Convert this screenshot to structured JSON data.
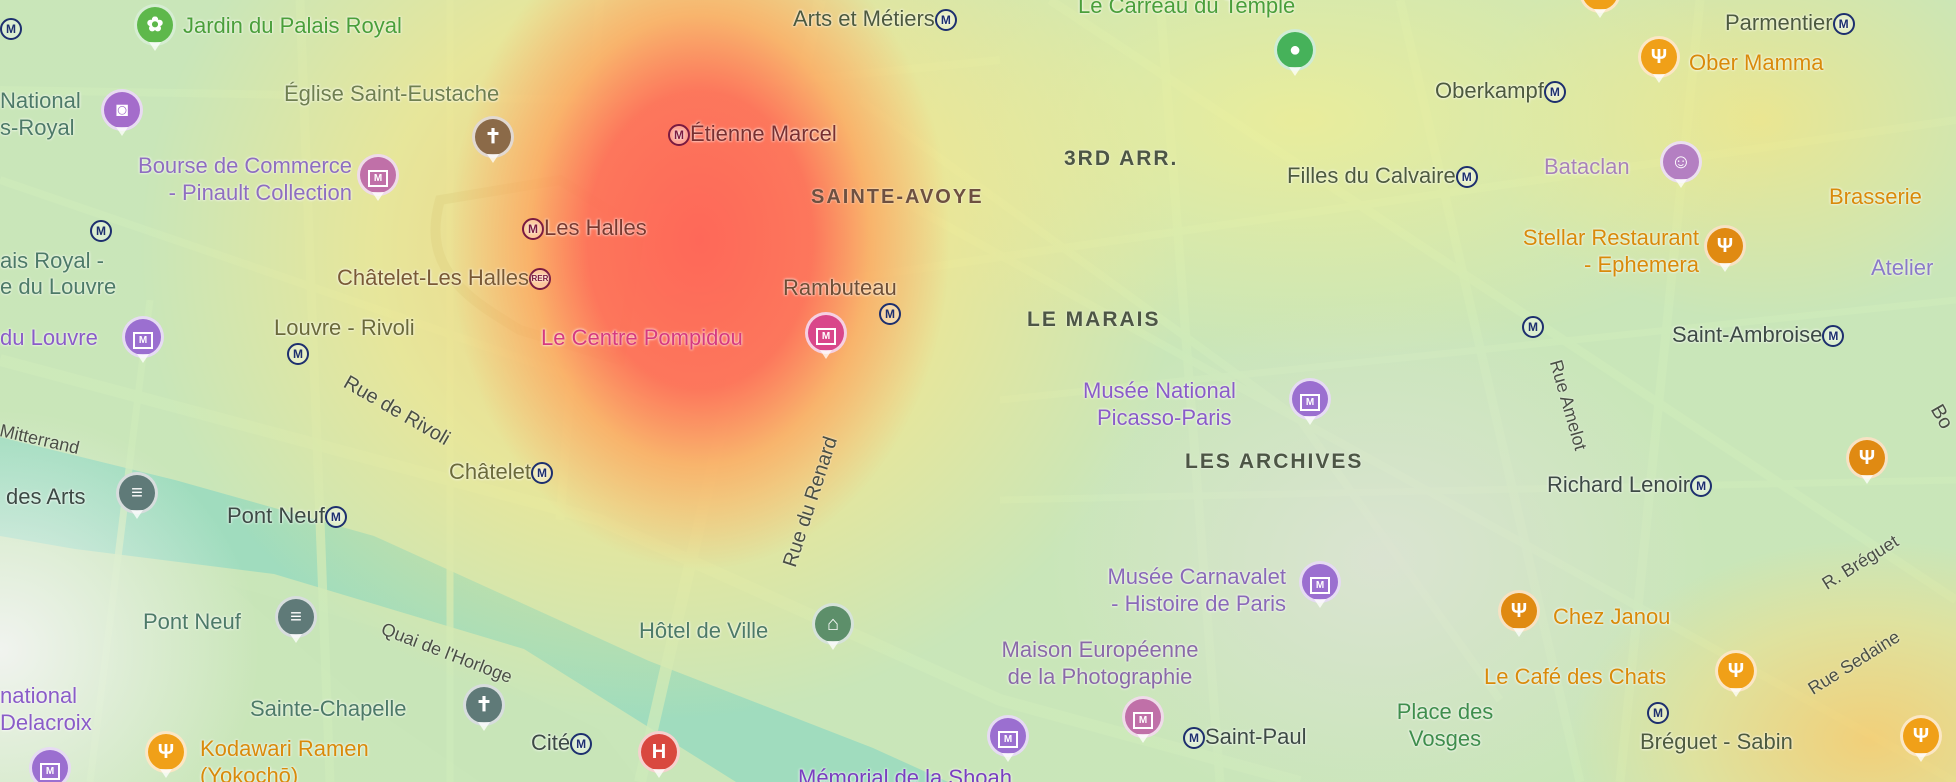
{
  "map": {
    "overlay": "heatmap",
    "heat_colors": {
      "high": "#ff5a55",
      "medium": "#ffc86e",
      "low": "#f5f08c",
      "lowest": "#afe496"
    },
    "water_color": "#8dd3ee",
    "districts": {
      "third": "3RD ARR.",
      "sainte_avoye": "SAINTE-AVOYE",
      "marais": "LE MARAIS",
      "archives": "LES ARCHIVES"
    },
    "stations": {
      "arts_metiers": "Arts et Métiers",
      "etienne_marcel": "Étienne Marcel",
      "les_halles": "Les Halles",
      "chatelet_les_halles": "Châtelet-Les Halles",
      "rambuteau": "Rambuteau",
      "louvre_rivoli": "Louvre - Rivoli",
      "palais_royal_1": "ais Royal -",
      "palais_royal_2": "e du Louvre",
      "chatelet": "Châtelet",
      "pont_neuf": "Pont Neuf",
      "cite": "Cité",
      "saint_paul": "Saint-Paul",
      "filles_calvaire": "Filles du Calvaire",
      "oberkampf": "Oberkampf",
      "parmentier": "Parmentier",
      "saint_ambroise": "Saint-Ambroise",
      "richard_lenoir": "Richard Lenoir",
      "breguet_sabin": "Bréguet - Sabin",
      "metro_symbol": "M",
      "rer_symbol": "RER"
    },
    "pois": {
      "jardin": "Jardin du Palais Royal",
      "national_1": "National",
      "national_2": "s-Royal",
      "eustache": "Église Saint-Eustache",
      "bourse_1": "Bourse de Commerce",
      "bourse_2": "- Pinault Collection",
      "louvre": "du Louvre",
      "pompidou": "Le Centre Pompidou",
      "des_arts": "des Arts",
      "pont_neuf_bridge": "Pont Neuf",
      "delacroix_1": "national",
      "delacroix_2": "Delacroix",
      "kodawari_1": "Kodawari Ramen",
      "kodawari_2": "(Yokochō)",
      "sainte_chapelle": "Sainte-Chapelle",
      "hotel_de_ville": "Hôtel de Ville",
      "mep_1": "Maison Européenne",
      "mep_2": "de la Photographie",
      "memorial": "Mémorial de la Shoah",
      "place_vosges_1": "Place des",
      "place_vosges_2": "Vosges",
      "carreau": "Le Carreau du Temple",
      "picasso_1": "Musée National",
      "picasso_2": "Picasso-Paris",
      "carnavalet_1": "Musée Carnavalet",
      "carnavalet_2": "- Histoire de Paris",
      "ober_mamma": "Ober Mamma",
      "bataclan": "Bataclan",
      "brasserie": "Brasserie",
      "stellar_1": "Stellar Restaurant",
      "stellar_2": "- Ephemera",
      "atelier": "Atelier",
      "chez_janou": "Chez Janou",
      "cafe_chats": "Le Café des Chats",
      "hospital_symbol": "H"
    },
    "streets": {
      "rivoli": "Rue de Rivoli",
      "mitterrand": "Mitterrand",
      "renard": "Rue du Renard",
      "horloge": "Quai de l'Horloge",
      "amelot": "Rue Amelot",
      "breguet": "R. Bréguet",
      "sedaine": "Rue Sedaine",
      "bo": "Bo"
    }
  }
}
